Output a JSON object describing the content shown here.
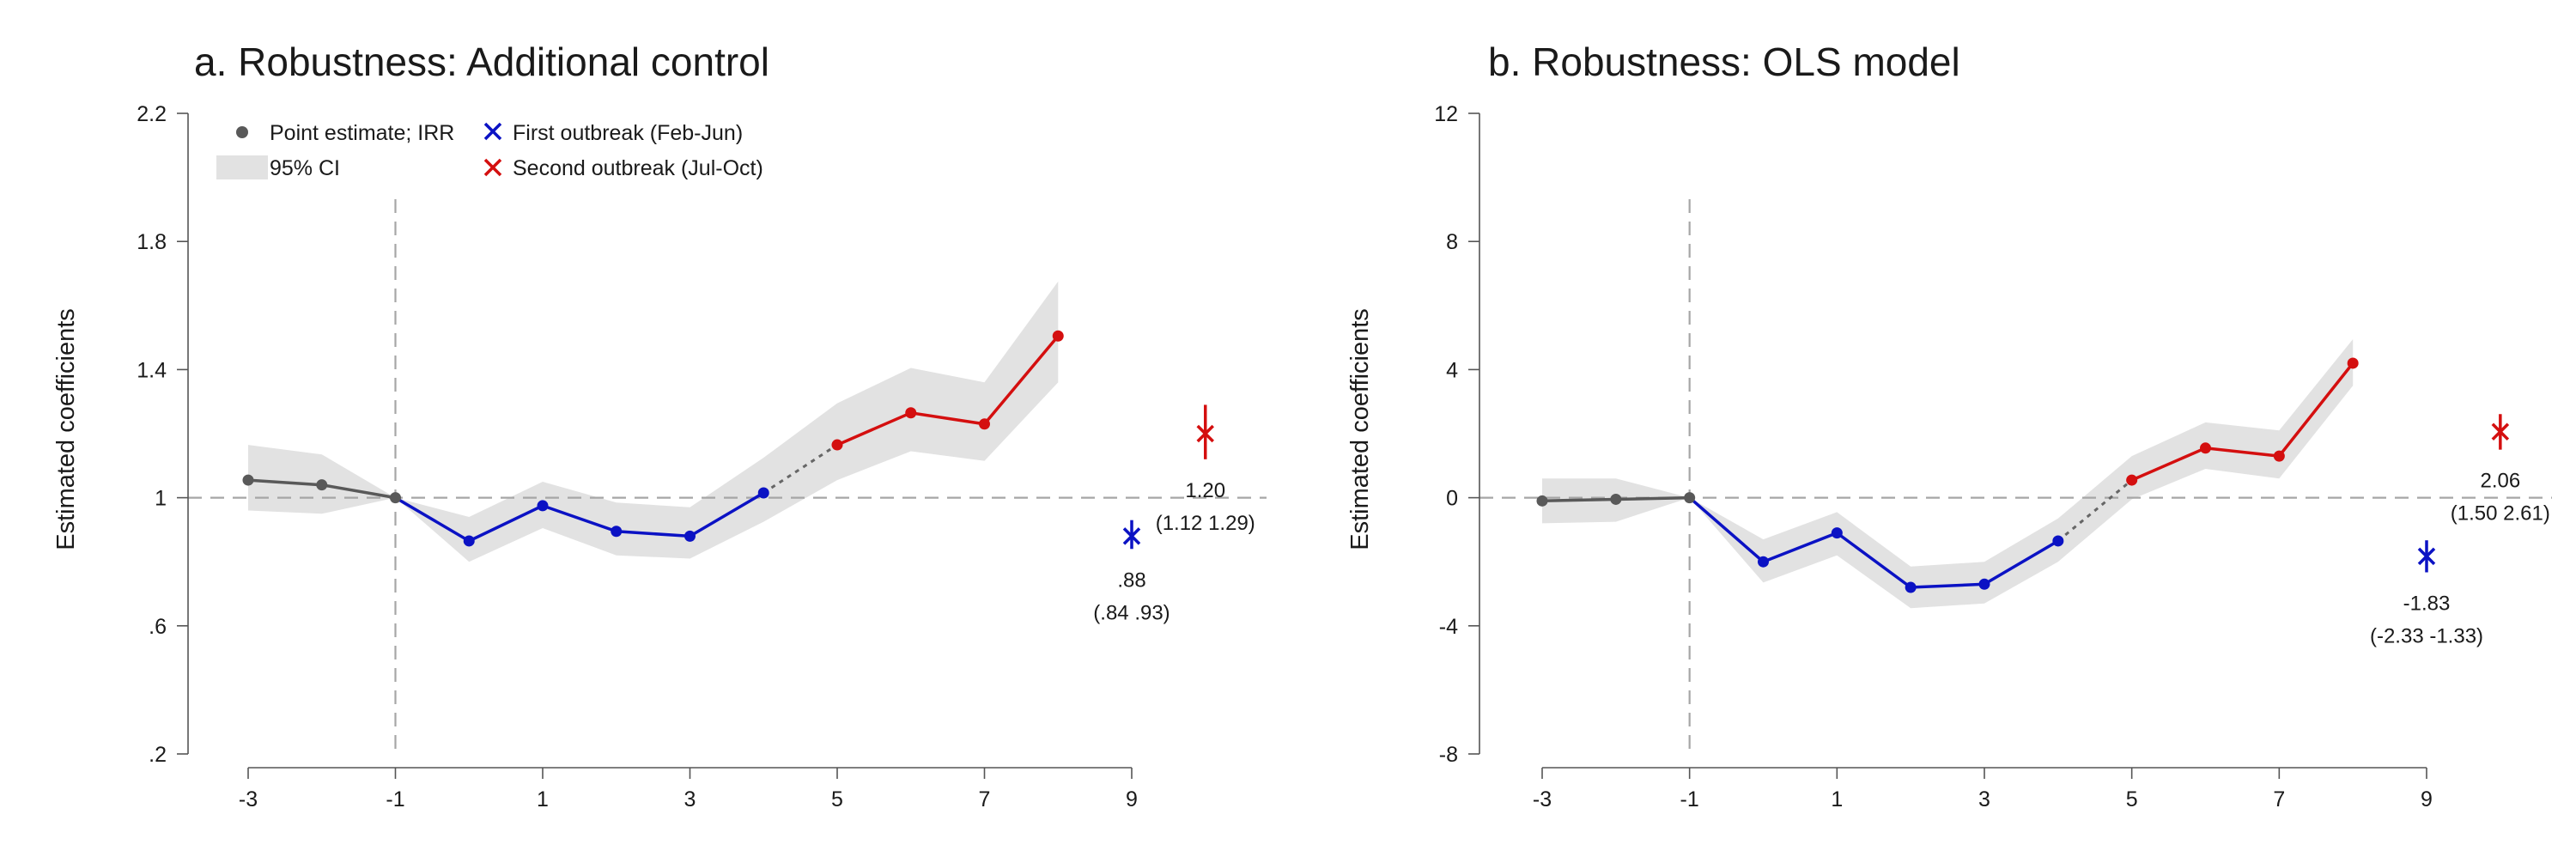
{
  "colors": {
    "pre": "#595959",
    "first": "#0b12c4",
    "second": "#d40f0f",
    "ci": "#e2e2e2",
    "refline": "#a6a6a6",
    "axis": "#555555"
  },
  "legend": {
    "point": "Point estimate; IRR",
    "ci": "95% CI",
    "first": "First outbreak (Feb-Jun)",
    "second": "Second outbreak (Jul-Oct)"
  },
  "chart_data": [
    {
      "type": "line",
      "title": "a. Robustness: Additional control",
      "ylabel": "Estimated coefficients",
      "xlabel": "",
      "xlim": [
        -3,
        9
      ],
      "ylim": [
        0.2,
        2.2
      ],
      "xticks": [
        -3,
        -1,
        1,
        3,
        5,
        7,
        9
      ],
      "yticks": [
        0.2,
        0.6,
        1.0,
        1.4,
        1.8,
        2.2
      ],
      "ytick_labels": [
        ".2",
        ".6",
        "1",
        "1.4",
        "1.8",
        "2.2"
      ],
      "reference_y": 1,
      "reference_x": -1,
      "grid": false,
      "legend_position": "top-left",
      "series": [
        {
          "group": "pre",
          "points": [
            {
              "x": -3,
              "y": 1.055,
              "lo": 0.96,
              "hi": 1.165
            },
            {
              "x": -2,
              "y": 1.04,
              "lo": 0.95,
              "hi": 1.135
            },
            {
              "x": -1,
              "y": 1.0,
              "lo": 1.0,
              "hi": 1.0
            }
          ]
        },
        {
          "group": "first",
          "points": [
            {
              "x": -1,
              "y": 1.0,
              "lo": 1.0,
              "hi": 1.0
            },
            {
              "x": 0,
              "y": 0.865,
              "lo": 0.8,
              "hi": 0.94
            },
            {
              "x": 1,
              "y": 0.975,
              "lo": 0.905,
              "hi": 1.05
            },
            {
              "x": 2,
              "y": 0.895,
              "lo": 0.82,
              "hi": 0.985
            },
            {
              "x": 3,
              "y": 0.88,
              "lo": 0.81,
              "hi": 0.97
            },
            {
              "x": 4,
              "y": 1.015,
              "lo": 0.925,
              "hi": 1.125
            }
          ]
        },
        {
          "group": "second",
          "points": [
            {
              "x": 5,
              "y": 1.165,
              "lo": 1.055,
              "hi": 1.295
            },
            {
              "x": 6,
              "y": 1.265,
              "lo": 1.145,
              "hi": 1.405
            },
            {
              "x": 7,
              "y": 1.23,
              "lo": 1.115,
              "hi": 1.36
            },
            {
              "x": 8,
              "y": 1.505,
              "lo": 1.36,
              "hi": 1.675
            }
          ]
        }
      ],
      "summary": [
        {
          "group": "first",
          "x": 9,
          "y": 0.88,
          "lo": 0.84,
          "hi": 0.93,
          "label": ".88",
          "ci_label": "(.84 .93)",
          "label_side": "below"
        },
        {
          "group": "second",
          "x": 10,
          "y": 1.2,
          "lo": 1.12,
          "hi": 1.29,
          "label": "1.20",
          "ci_label": "(1.12 1.29)",
          "label_side": "below"
        }
      ]
    },
    {
      "type": "line",
      "title": "b. Robustness: OLS model",
      "ylabel": "Estimated coefficients",
      "xlabel": "",
      "xlim": [
        -3,
        9
      ],
      "ylim": [
        -8,
        12
      ],
      "xticks": [
        -3,
        -1,
        1,
        3,
        5,
        7,
        9
      ],
      "yticks": [
        -8,
        -4,
        0,
        4,
        8,
        12
      ],
      "ytick_labels": [
        "-8",
        "-4",
        "0",
        "4",
        "8",
        "12"
      ],
      "reference_y": 0,
      "reference_x": -1,
      "grid": false,
      "series": [
        {
          "group": "pre",
          "points": [
            {
              "x": -3,
              "y": -0.1,
              "lo": -0.8,
              "hi": 0.6
            },
            {
              "x": -2,
              "y": -0.05,
              "lo": -0.75,
              "hi": 0.6
            },
            {
              "x": -1,
              "y": 0.0,
              "lo": 0.0,
              "hi": 0.0
            }
          ]
        },
        {
          "group": "first",
          "points": [
            {
              "x": -1,
              "y": 0.0,
              "lo": 0.0,
              "hi": 0.0
            },
            {
              "x": 0,
              "y": -2.0,
              "lo": -2.65,
              "hi": -1.3
            },
            {
              "x": 1,
              "y": -1.1,
              "lo": -1.8,
              "hi": -0.45
            },
            {
              "x": 2,
              "y": -2.8,
              "lo": -3.45,
              "hi": -2.15
            },
            {
              "x": 3,
              "y": -2.7,
              "lo": -3.3,
              "hi": -2.0
            },
            {
              "x": 4,
              "y": -1.35,
              "lo": -2.0,
              "hi": -0.65
            }
          ]
        },
        {
          "group": "second",
          "points": [
            {
              "x": 5,
              "y": 0.55,
              "lo": -0.05,
              "hi": 1.3
            },
            {
              "x": 6,
              "y": 1.55,
              "lo": 0.9,
              "hi": 2.35
            },
            {
              "x": 7,
              "y": 1.3,
              "lo": 0.6,
              "hi": 2.1
            },
            {
              "x": 8,
              "y": 4.2,
              "lo": 3.5,
              "hi": 4.95
            }
          ]
        }
      ],
      "summary": [
        {
          "group": "first",
          "x": 9,
          "y": -1.83,
          "lo": -2.33,
          "hi": -1.33,
          "label": "-1.83",
          "ci_label": "(-2.33 -1.33)",
          "label_side": "below"
        },
        {
          "group": "second",
          "x": 10,
          "y": 2.06,
          "lo": 1.5,
          "hi": 2.61,
          "label": "2.06",
          "ci_label": "(1.50 2.61)",
          "label_side": "below"
        }
      ]
    }
  ]
}
